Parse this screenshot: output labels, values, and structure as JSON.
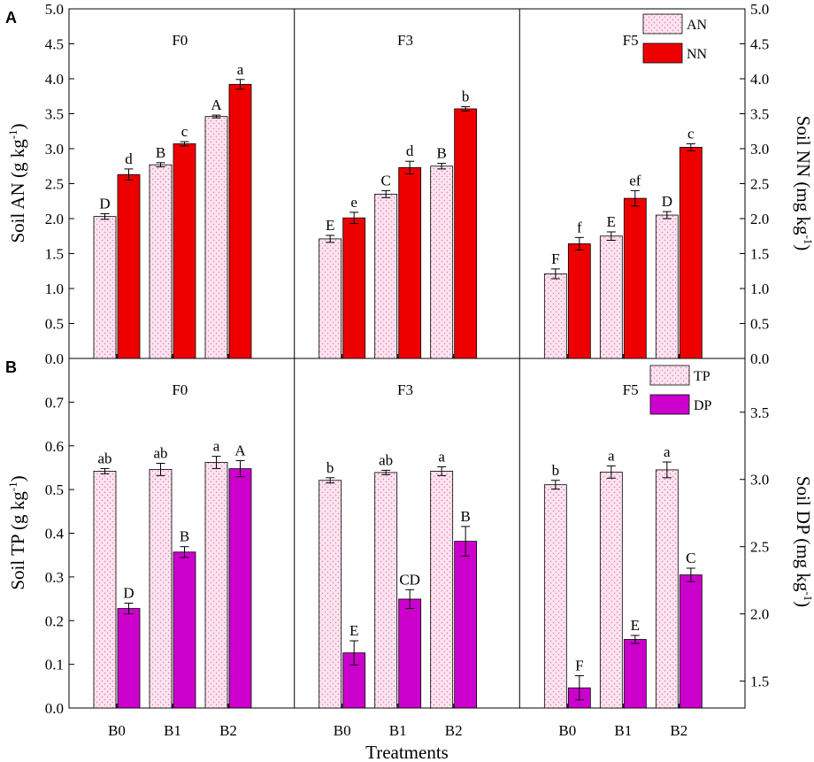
{
  "colors": {
    "an_fill": "#fde3ef",
    "an_dot": "#e07ab0",
    "nn_fill": "#ee0000",
    "tp_fill": "#fde3ef",
    "tp_dot": "#e07ab0",
    "dp_fill": "#cc00cc"
  },
  "chart_data": [
    {
      "type": "bar",
      "panel": "A",
      "groups": [
        "F0",
        "F3",
        "F5"
      ],
      "categories": [
        "B0",
        "B1",
        "B2"
      ],
      "ylabel": "Soil AN (g kg-1)",
      "ylabel_parts": {
        "main": "Soil AN (g kg",
        "sup": "-1",
        "tail": ")"
      },
      "y2label": "Soil NN (mg kg-1)",
      "y2label_parts": {
        "main": "Soil NN (mg kg",
        "sup": "-1",
        "tail": ")"
      },
      "ylim": [
        0,
        5.0
      ],
      "y2lim": [
        0,
        5.0
      ],
      "yticks": [
        "0.0",
        "0.5",
        "1.0",
        "1.5",
        "2.0",
        "2.5",
        "3.0",
        "3.5",
        "4.0",
        "4.5",
        "5.0"
      ],
      "y2ticks": [
        "0.0",
        "0.5",
        "1.0",
        "1.5",
        "2.0",
        "2.5",
        "3.0",
        "3.5",
        "4.0",
        "4.5",
        "5.0"
      ],
      "legend": [
        "AN",
        "NN"
      ],
      "series": [
        {
          "name": "AN",
          "axis": "left",
          "values": [
            [
              2.03,
              2.77,
              3.46
            ],
            [
              1.71,
              2.35,
              2.75
            ],
            [
              1.21,
              1.75,
              2.05
            ]
          ],
          "errors": [
            [
              0.04,
              0.03,
              0.02
            ],
            [
              0.05,
              0.05,
              0.04
            ],
            [
              0.07,
              0.06,
              0.05
            ]
          ],
          "labels": [
            [
              "D",
              "B",
              "A"
            ],
            [
              "E",
              "C",
              "B"
            ],
            [
              "F",
              "E",
              "D"
            ]
          ]
        },
        {
          "name": "NN",
          "axis": "right",
          "values": [
            [
              2.63,
              3.07,
              3.92
            ],
            [
              2.01,
              2.73,
              3.57
            ],
            [
              1.64,
              2.29,
              3.02
            ]
          ],
          "errors": [
            [
              0.08,
              0.03,
              0.07
            ],
            [
              0.08,
              0.09,
              0.03
            ],
            [
              0.09,
              0.11,
              0.05
            ]
          ],
          "labels": [
            [
              "d",
              "c",
              "a"
            ],
            [
              "e",
              "d",
              "b"
            ],
            [
              "f",
              "ef",
              "c"
            ]
          ]
        }
      ]
    },
    {
      "type": "bar",
      "panel": "B",
      "groups": [
        "F0",
        "F3",
        "F5"
      ],
      "categories": [
        "B0",
        "B1",
        "B2"
      ],
      "xlabel": "Treatments",
      "ylabel": "Soil TP (g kg-1)",
      "ylabel_parts": {
        "main": "Soil TP (g kg",
        "sup": "-1",
        "tail": ")"
      },
      "y2label": "Soil DP (mg kg-1)",
      "y2label_parts": {
        "main": "Soil DP (mg kg",
        "sup": "-1",
        "tail": ")"
      },
      "ylim": [
        0,
        0.8
      ],
      "y2lim": [
        1.3,
        3.9
      ],
      "yticks": [
        "0.0",
        "0.1",
        "0.2",
        "0.3",
        "0.4",
        "0.5",
        "0.6",
        "0.7"
      ],
      "y2ticks": [
        "1.5",
        "2.0",
        "2.5",
        "3.0",
        "3.5"
      ],
      "legend": [
        "TP",
        "DP"
      ],
      "series": [
        {
          "name": "TP",
          "axis": "left",
          "values": [
            [
              0.542,
              0.546,
              0.562
            ],
            [
              0.521,
              0.539,
              0.542
            ],
            [
              0.511,
              0.54,
              0.545
            ]
          ],
          "errors": [
            [
              0.006,
              0.014,
              0.014
            ],
            [
              0.006,
              0.005,
              0.01
            ],
            [
              0.01,
              0.014,
              0.018
            ]
          ],
          "labels": [
            [
              "ab",
              "ab",
              "a"
            ],
            [
              "b",
              "ab",
              "a"
            ],
            [
              "b",
              "a",
              "a"
            ]
          ]
        },
        {
          "name": "DP",
          "axis": "right",
          "values": [
            [
              2.04,
              2.46,
              3.08
            ],
            [
              1.71,
              2.11,
              2.54
            ],
            [
              1.45,
              1.81,
              2.29
            ]
          ],
          "errors": [
            [
              0.04,
              0.04,
              0.06
            ],
            [
              0.09,
              0.07,
              0.11
            ],
            [
              0.09,
              0.03,
              0.05
            ]
          ],
          "labels": [
            [
              "D",
              "B",
              "A"
            ],
            [
              "E",
              "CD",
              "B"
            ],
            [
              "F",
              "E",
              "C"
            ]
          ]
        }
      ]
    }
  ]
}
